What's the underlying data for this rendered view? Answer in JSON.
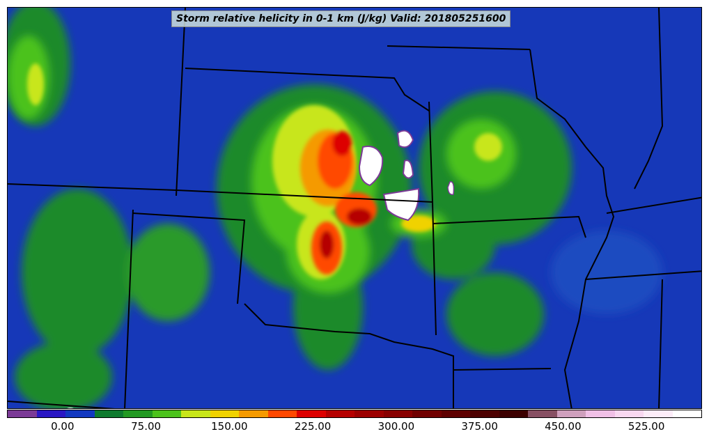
{
  "map": {
    "title": "Storm relative helicity in 0-1 km (J/kg) Valid: 201805251600",
    "variable": "Storm relative helicity in 0-1 km",
    "units": "J/kg",
    "valid_time": "201805251600",
    "region": "US Central Plains"
  },
  "colorbar": {
    "min": -50,
    "max": 575,
    "step": 25,
    "tick_values": [
      0,
      75,
      150,
      225,
      300,
      375,
      450,
      525
    ],
    "tick_labels": [
      "0.00",
      "75.00",
      "150.00",
      "225.00",
      "300.00",
      "375.00",
      "450.00",
      "525.00"
    ],
    "colors": [
      "#7b3a96",
      "#2a17c4",
      "#1238c0",
      "#0e7a2e",
      "#229922",
      "#4cc21c",
      "#c8e61a",
      "#f0d200",
      "#f59a00",
      "#ff4800",
      "#dd0000",
      "#b50000",
      "#9c0000",
      "#880000",
      "#700000",
      "#5e0000",
      "#4c0000",
      "#3c0000",
      "#875063",
      "#cfa0bd",
      "#f0c0e6",
      "#f8d8f0",
      "#fcecf8",
      "#ffffff"
    ]
  }
}
